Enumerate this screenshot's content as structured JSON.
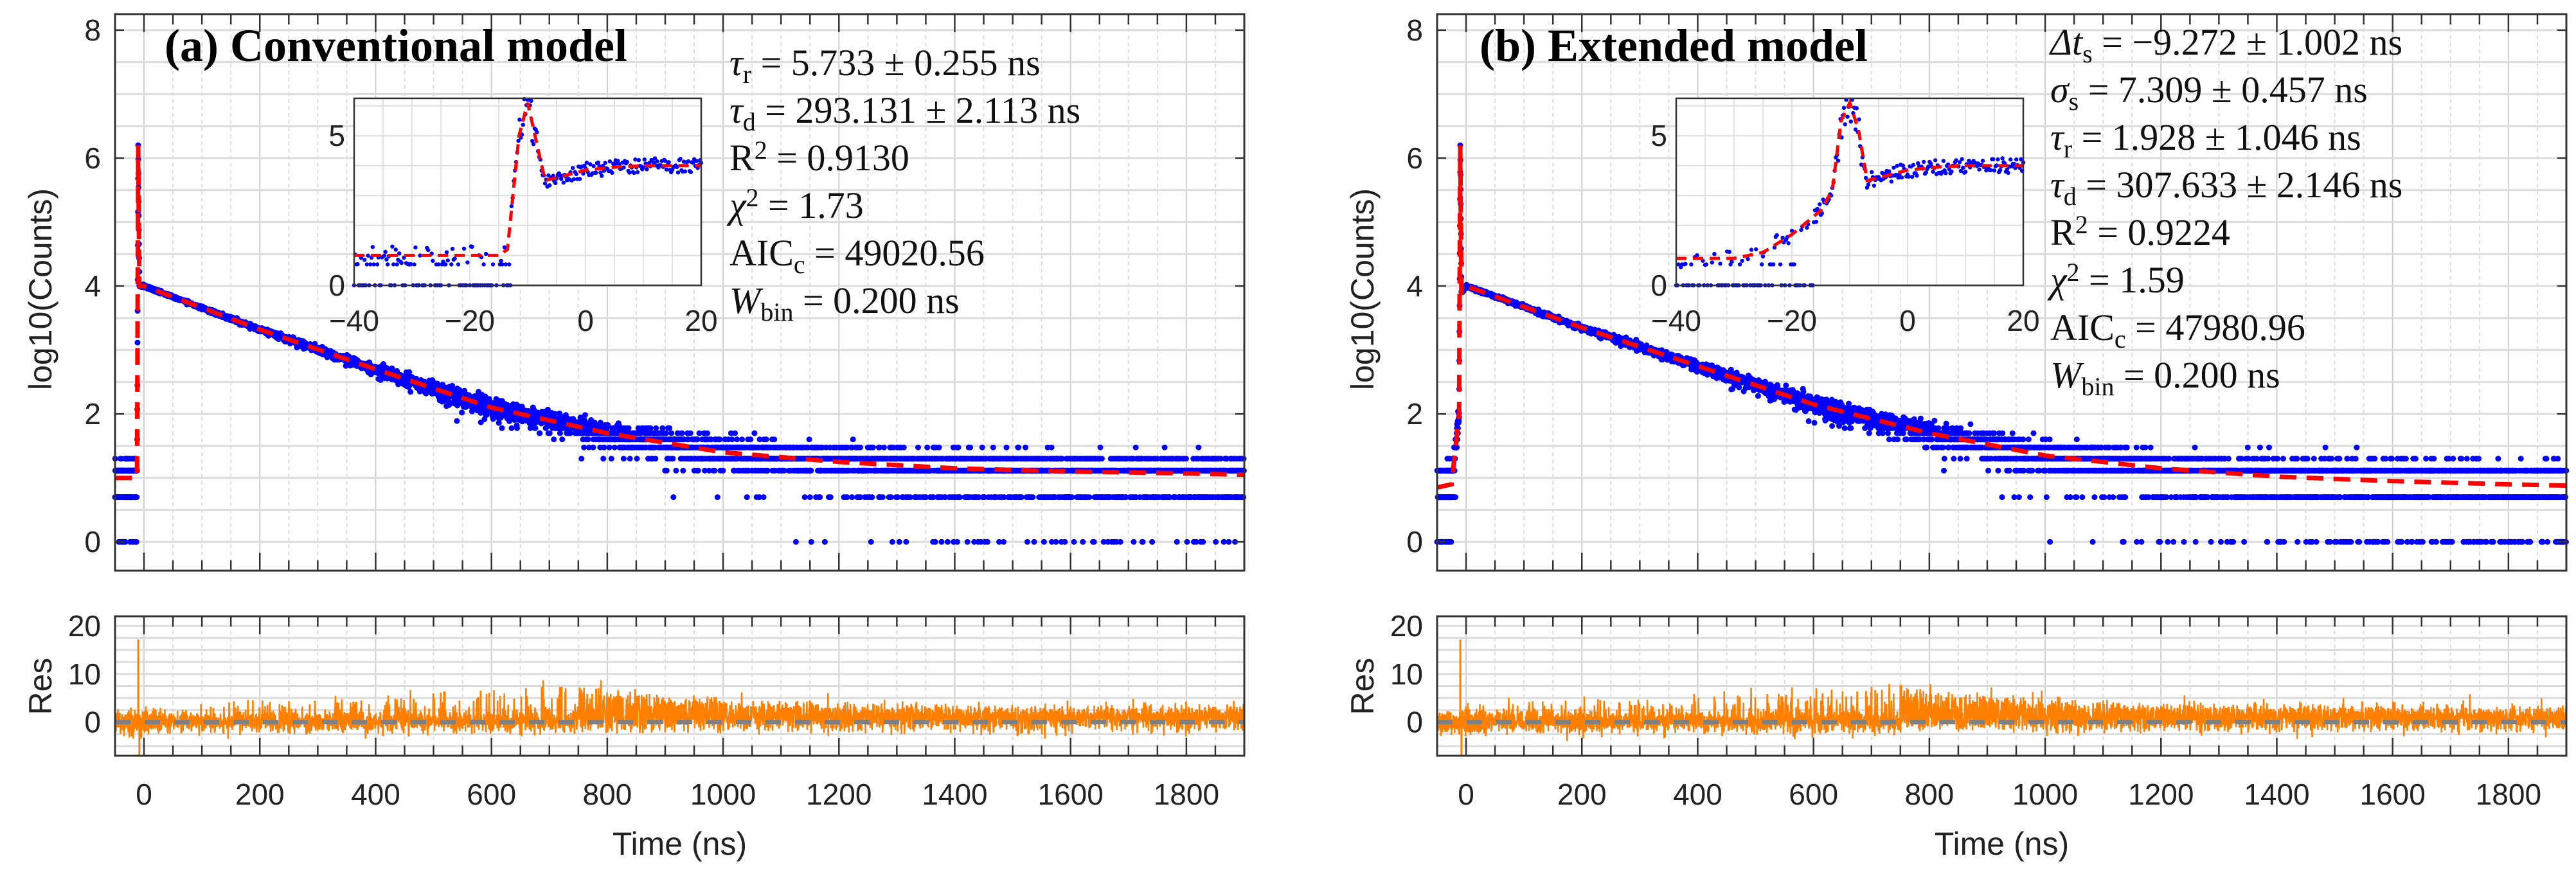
{
  "chart_data": [
    {
      "type": "scatter",
      "panel": "a",
      "title": "(a) Conventional model",
      "xlabel": "Time (ns)",
      "ylabel": "log10(Counts)",
      "res_ylabel": "Res",
      "xlim": [
        -50,
        1900
      ],
      "ylim": [
        -0.45,
        8.25
      ],
      "res_ylim": [
        -7,
        22
      ],
      "xticks": [
        "0",
        "200",
        "400",
        "600",
        "800",
        "1000",
        "1200",
        "1400",
        "1600",
        "1800"
      ],
      "yticks": [
        "0",
        "2",
        "4",
        "6",
        "8"
      ],
      "res_yticks": [
        "0",
        "10",
        "20"
      ],
      "grid": true,
      "annotations": [
        {
          "sym": "τ",
          "sub": "r",
          "sup": "",
          "value": " = 5.733 ± 0.255 ns"
        },
        {
          "sym": "τ",
          "sub": "d",
          "sup": "",
          "value": " = 293.131 ± 2.113 ns"
        },
        {
          "sym": "R",
          "sub": "",
          "sup": "2",
          "value": " = 0.9130"
        },
        {
          "sym": "χ",
          "sub": "",
          "sup": "2",
          "value": " = 1.73"
        },
        {
          "sym": "AIC",
          "sub": "c",
          "sup": "",
          "value": " = 49020.56"
        },
        {
          "sym": "W",
          "sub": "bin",
          "sup": "",
          "value": " = 0.200 ns"
        }
      ],
      "fit_curve": {
        "x": [
          -50,
          -12,
          -10,
          -8,
          0,
          200,
          400,
          600,
          800,
          1000,
          1200,
          1400,
          1600,
          1800,
          1900
        ],
        "y": [
          1.0,
          1.0,
          6.2,
          4.0,
          4.0,
          3.32,
          2.7,
          2.1,
          1.7,
          1.4,
          1.25,
          1.15,
          1.1,
          1.07,
          1.05
        ]
      },
      "inset": {
        "xlim": [
          -40,
          20
        ],
        "ylim": [
          0,
          6.25
        ],
        "xticks": [
          "-40",
          "-20",
          "0",
          "20"
        ],
        "yticks": [
          "0",
          "5"
        ],
        "fit_curve": {
          "x": [
            -40,
            -15,
            -13.5,
            -11.5,
            -10,
            -8.5,
            -7,
            -3,
            0,
            5,
            10,
            20
          ],
          "y": [
            1.0,
            1.0,
            1.2,
            5.0,
            6.1,
            4.8,
            3.5,
            3.7,
            3.85,
            3.95,
            4.0,
            4.0
          ]
        }
      },
      "colors": {
        "data": "#0000ff",
        "fit": "#ff0000",
        "residual": "#ff8000",
        "zero": "#7f7f7f"
      }
    },
    {
      "type": "scatter",
      "panel": "b",
      "title": "(b) Extended model",
      "xlabel": "Time (ns)",
      "ylabel": "log10(Counts)",
      "res_ylabel": "Res",
      "xlim": [
        -50,
        1900
      ],
      "ylim": [
        -0.45,
        8.25
      ],
      "res_ylim": [
        -7,
        22
      ],
      "xticks": [
        "0",
        "200",
        "400",
        "600",
        "800",
        "1000",
        "1200",
        "1400",
        "1600",
        "1800"
      ],
      "yticks": [
        "0",
        "2",
        "4",
        "6",
        "8"
      ],
      "res_yticks": [
        "0",
        "10",
        "20"
      ],
      "grid": true,
      "annotations": [
        {
          "sym": "Δt",
          "sub": "s",
          "sup": "",
          "value": " = −9.272 ± 1.002 ns"
        },
        {
          "sym": "σ",
          "sub": "s",
          "sup": "",
          "value": " = 7.309 ± 0.457 ns"
        },
        {
          "sym": "τ",
          "sub": "r",
          "sup": "",
          "value": " = 1.928 ± 1.046 ns"
        },
        {
          "sym": "τ",
          "sub": "d",
          "sup": "",
          "value": " = 307.633 ± 2.146 ns"
        },
        {
          "sym": "R",
          "sub": "",
          "sup": "2",
          "value": " = 0.9224"
        },
        {
          "sym": "χ",
          "sub": "",
          "sup": "2",
          "value": " = 1.59"
        },
        {
          "sym": "AIC",
          "sub": "c",
          "sup": "",
          "value": " = 47980.96"
        },
        {
          "sym": "W",
          "sub": "bin",
          "sup": "",
          "value": " = 0.200 ns"
        }
      ],
      "fit_curve": {
        "x": [
          -50,
          -25,
          -12,
          -10,
          -8,
          0,
          200,
          400,
          600,
          800,
          1000,
          1200,
          1400,
          1600,
          1800,
          1900
        ],
        "y": [
          0.85,
          0.9,
          2.0,
          6.2,
          3.9,
          4.0,
          3.35,
          2.75,
          2.15,
          1.7,
          1.35,
          1.15,
          1.02,
          0.95,
          0.9,
          0.88
        ]
      },
      "inset": {
        "xlim": [
          -40,
          20
        ],
        "ylim": [
          0,
          6.25
        ],
        "xticks": [
          "-40",
          "-20",
          "0",
          "20"
        ],
        "yticks": [
          "0",
          "5"
        ],
        "fit_curve": {
          "x": [
            -40,
            -30,
            -25,
            -20,
            -15,
            -13,
            -11.5,
            -10,
            -8.5,
            -7,
            -3,
            0,
            5,
            10,
            20
          ],
          "y": [
            0.9,
            0.9,
            1.1,
            1.7,
            2.5,
            3.2,
            5.5,
            6.1,
            5.2,
            3.5,
            3.7,
            3.85,
            3.95,
            4.0,
            4.0
          ]
        }
      },
      "colors": {
        "data": "#0000ff",
        "fit": "#ff0000",
        "residual": "#ff8000",
        "zero": "#7f7f7f"
      }
    }
  ]
}
